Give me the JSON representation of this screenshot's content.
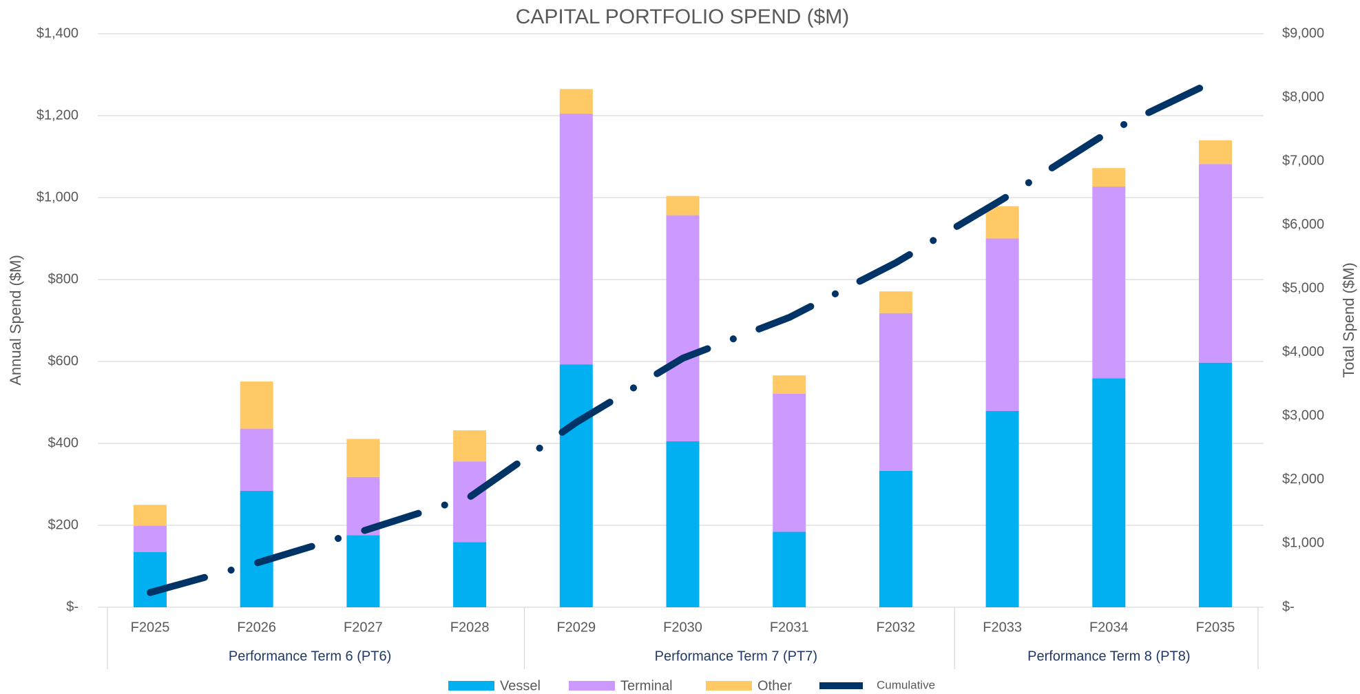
{
  "chart_data": {
    "type": "bar",
    "title": "CAPITAL PORTFOLIO SPEND ($M)",
    "y_label": "Annual Spend ($M)",
    "y2_label": "Total Spend ($M)",
    "categories": [
      "F2025",
      "F2026",
      "F2027",
      "F2028",
      "F2029",
      "F2030",
      "F2031",
      "F2032",
      "F2033",
      "F2034",
      "F2035"
    ],
    "groups": [
      {
        "label": "Performance Term 6 (PT6)",
        "span": 4
      },
      {
        "label": "Performance Term 7 (PT7)",
        "span": 4
      },
      {
        "label": "Performance Term 8 (PT8)",
        "span": 3
      }
    ],
    "series": [
      {
        "name": "Vessel",
        "color": "#00b0f0",
        "stacked": true,
        "values": [
          135,
          284,
          176,
          159,
          593,
          405,
          184,
          333,
          479,
          559,
          597
        ]
      },
      {
        "name": "Terminal",
        "color": "#cc99ff",
        "stacked": true,
        "values": [
          64,
          152,
          142,
          197,
          612,
          552,
          337,
          385,
          421,
          468,
          485
        ]
      },
      {
        "name": "Other",
        "color": "#ffc966",
        "stacked": true,
        "values": [
          51,
          115,
          93,
          76,
          60,
          47,
          45,
          53,
          79,
          45,
          58
        ]
      },
      {
        "name": "Cumulative",
        "color": "#003366",
        "type": "line",
        "axis": "y2",
        "values": [
          231,
          694,
          1198,
          1729,
          2900,
          3908,
          4548,
          5406,
          6400,
          7462,
          8265
        ]
      }
    ],
    "ylim": [
      0,
      1400
    ],
    "yticks": [
      {
        "value": 0,
        "label": "$-"
      },
      {
        "value": 200,
        "label": "$200"
      },
      {
        "value": 400,
        "label": "$400"
      },
      {
        "value": 600,
        "label": "$600"
      },
      {
        "value": 800,
        "label": "$800"
      },
      {
        "value": 1000,
        "label": "$1,000"
      },
      {
        "value": 1200,
        "label": "$1,200"
      },
      {
        "value": 1400,
        "label": "$1,400"
      }
    ],
    "y2lim": [
      0,
      9000
    ],
    "y2ticks": [
      {
        "value": 0,
        "label": "$-"
      },
      {
        "value": 1000,
        "label": "$1,000"
      },
      {
        "value": 2000,
        "label": "$2,000"
      },
      {
        "value": 3000,
        "label": "$3,000"
      },
      {
        "value": 4000,
        "label": "$4,000"
      },
      {
        "value": 5000,
        "label": "$5,000"
      },
      {
        "value": 6000,
        "label": "$6,000"
      },
      {
        "value": 7000,
        "label": "$7,000"
      },
      {
        "value": 8000,
        "label": "$8,000"
      },
      {
        "value": 9000,
        "label": "$9,000"
      }
    ],
    "grid": true,
    "legend": "bottom"
  }
}
